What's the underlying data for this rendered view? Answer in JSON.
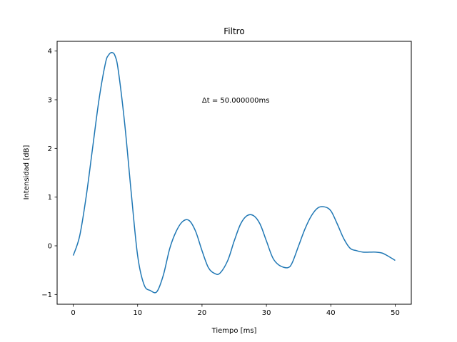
{
  "chart_data": {
    "type": "line",
    "title": "Filtro",
    "xlabel": "Tiempo [ms]",
    "ylabel": "Intensidad [dB]",
    "xlim": [
      -2.5,
      52.5
    ],
    "ylim": [
      -1.2,
      4.2
    ],
    "xticks": [
      "0",
      "10",
      "20",
      "30",
      "40",
      "50"
    ],
    "yticks": [
      "−1",
      "0",
      "1",
      "2",
      "3",
      "4"
    ],
    "grid": false,
    "annotation": {
      "text": "Δt = 50.000000ms",
      "x": 20,
      "y": 3.0
    },
    "series": [
      {
        "color": "#1f77b4",
        "x": [
          0,
          1,
          2,
          3,
          4,
          5,
          5.5,
          6,
          6.5,
          7,
          8,
          9,
          10,
          11,
          12,
          13,
          14,
          15,
          16,
          17,
          18,
          19,
          20,
          21,
          22,
          22.8,
          24,
          25,
          26,
          27,
          28,
          29,
          30,
          31,
          32,
          33.3,
          34,
          35,
          36,
          37,
          38,
          39,
          40,
          41,
          42,
          43,
          44,
          45,
          46,
          47,
          48,
          49,
          50
        ],
        "values": [
          -0.2,
          0.2,
          1.0,
          2.0,
          3.0,
          3.75,
          3.92,
          3.97,
          3.9,
          3.6,
          2.5,
          1.1,
          -0.2,
          -0.8,
          -0.92,
          -0.94,
          -0.6,
          -0.05,
          0.3,
          0.5,
          0.52,
          0.3,
          -0.1,
          -0.45,
          -0.57,
          -0.56,
          -0.3,
          0.1,
          0.45,
          0.62,
          0.62,
          0.45,
          0.1,
          -0.25,
          -0.4,
          -0.45,
          -0.35,
          0.0,
          0.35,
          0.62,
          0.78,
          0.8,
          0.72,
          0.45,
          0.15,
          -0.05,
          -0.1,
          -0.13,
          -0.13,
          -0.13,
          -0.15,
          -0.22,
          -0.3
        ]
      }
    ]
  }
}
